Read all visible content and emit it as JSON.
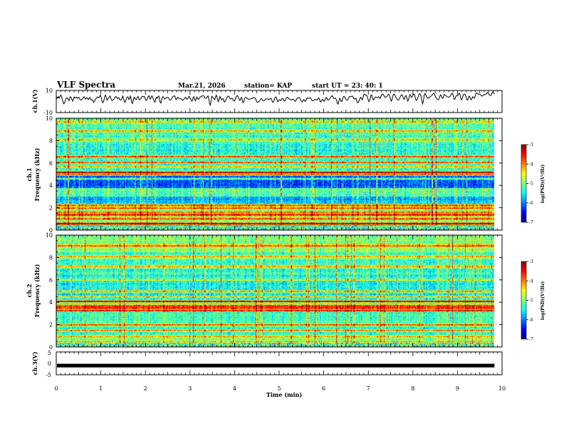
{
  "header": {
    "title": "VLF Spectra",
    "date": "Mar.21, 2026",
    "station": "station= KAP",
    "start_ut": "start  UT =   23: 40: 1"
  },
  "chart_data": [
    {
      "type": "line",
      "name": "ch1-waveform",
      "ylabel": "ch.1(V)",
      "ylim": [
        -10,
        10
      ],
      "yticks": [
        "10",
        "-10"
      ],
      "xlim": [
        0,
        10
      ],
      "values": [
        2.1,
        4.0,
        3.2,
        4.5,
        3.0,
        4.7,
        5.9,
        5.0,
        2.3,
        -0.4,
        -2.1,
        -1.3,
        1.1,
        2.6,
        3.3,
        2.9,
        2.2,
        0.8,
        2.9,
        4.3,
        3.6,
        1.4,
        0.4,
        2.6,
        4.1,
        3.0,
        3.6,
        3.9,
        3.1,
        3.4,
        3.9,
        2.8,
        1.6,
        1.3,
        2.1,
        2.3,
        3.4,
        4.4,
        3.6,
        2.2,
        2.9,
        3.5,
        2.4,
        1.9,
        3.1,
        3.7,
        2.3,
        1.3,
        1.7,
        0.9,
        -0.8,
        0.2,
        1.7,
        2.5,
        3.2,
        4.1,
        4.0,
        3.4,
        4.5,
        5.6,
        4.1,
        0.6,
        -1.1,
        -0.4,
        1.8,
        4.9,
        5.9,
        3.1,
        1.2,
        2.5,
        3.1,
        4.4,
        5.0,
        3.2,
        1.1,
        0.8,
        1.5,
        2.0,
        3.0,
        4.3,
        4.5,
        3.5,
        2.8,
        3.6,
        3.1,
        1.5,
        1.3,
        1.7,
        3.3,
        5.0,
        2.5,
        0.2,
        -0.8,
        1.1,
        3.1,
        4.2,
        4.1,
        1.8,
        2.3,
        4.9,
        2.9,
        -1.0,
        -1.8,
        1.3,
        3.9,
        3.6,
        2.1,
        1.7,
        3.1,
        4.6,
        3.6,
        1.5,
        2.0,
        2.7,
        3.6,
        4.9,
        4.5,
        4.1,
        4.6,
        2.5,
        0.9,
        1.5,
        2.8,
        4.7,
        5.2,
        2.8,
        2.2,
        4.1,
        5.2,
        3.7,
        2.0,
        0.0,
        -0.6,
        2.3,
        3.8,
        2.9,
        4.4,
        5.0,
        2.7,
        -0.8,
        -1.4,
        1.8,
        4.3,
        4.2,
        3.1,
        2.1,
        2.7,
        3.5,
        3.4,
        3.8,
        3.5,
        2.0,
        1.2,
        1.5,
        2.2,
        3.6,
        4.4,
        4.8,
        5.2,
        3.9,
        1.8,
        2.2,
        3.6,
        3.6,
        3.0,
        2.6,
        2.4,
        2.4,
        1.9,
        1.1,
        1.6,
        2.3,
        3.3,
        3.8,
        2.6,
        2.1,
        2.7,
        4.4,
        4.6,
        2.8,
        1.8,
        0.3,
        0.6,
        3.5,
        4.3,
        2.1,
        0.7,
        2.3,
        4.2,
        2.8,
        1.9,
        2.5,
        3.8,
        4.2,
        4.3,
        4.8,
        5.4,
        5.3,
        4.4,
        2.9,
        2.9,
        3.3,
        4.3,
        5.1,
        2.3,
        -1.9,
        -3.2,
        0.5,
        4.8,
        4.0,
        3.1,
        2.4,
        1.7,
        4.2,
        5.8,
        4.0,
        0.9,
        0.0,
        2.8,
        4.6,
        3.0,
        1.6,
        2.3,
        2.7,
        0.7,
        -0.5,
        0.6,
        1.8,
        3.0,
        4.5,
        4.9,
        4.3,
        2.9,
        2.2,
        2.6,
        3.1,
        2.0,
        1.0,
        0.4,
        1.3,
        3.1,
        4.7,
        5.5,
        4.6,
        3.2,
        1.0,
        1.0,
        3.2,
        3.7,
        0.4,
        -1.1,
        0.8,
        2.9,
        3.8,
        3.4,
        3.1,
        2.4,
        2.2,
        2.0,
        2.3,
        2.3,
        2.5,
        2.9,
        3.3,
        3.5,
        3.6,
        3.1,
        1.7,
        -0.1,
        -0.8,
        -0.5,
        0.1,
        0.7,
        1.6,
        2.6,
        2.3,
        1.1,
        0.6,
        0.7,
        1.4,
        2.2,
        2.3,
        2.5,
        2.1,
        1.6,
        1.9,
        2.6,
        3.0,
        1.7,
        -0.2,
        -0.8,
        0.5,
        2.6,
        3.9,
        4.1,
        2.3,
        -0.1,
        0.4,
        1.5,
        1.6,
        0.9,
        1.3,
        2.8,
        2.8,
        1.4,
        0.4,
        0.6,
        2.1,
        3.7,
        3.9,
        3.3,
        2.5,
        2.1,
        1.8,
        1.5,
        1.6,
        2.0,
        2.1,
        1.4,
        0.3,
        0.2,
        1.6,
        2.9,
        3.2,
        3.5,
        3.6,
        2.5,
        1.1,
        -0.1,
        -0.3,
        0.9,
        1.8,
        0.8,
        0.0,
        1.2,
        2.9,
        3.3,
        2.8,
        2.9,
        3.5,
        3.3,
        2.2,
        1.0,
        0.6,
        0.9,
        1.4,
        1.8,
        1.8,
        1.5,
        1.4,
        2.5,
        3.3,
        2.1,
        -0.1,
        -0.4,
        1.3,
        2.1,
        1.1,
        0.1,
        0.9,
        2.8,
        3.7,
        2.9,
        1.6,
        1.3,
        1.9,
        2.9,
        3.8,
        4.7,
        5.2,
        4.3,
        2.7,
        2.7,
        3.2,
        2.6,
        0.8,
        -1.8,
        -2.3,
        0.4,
        3.0,
        2.2,
        0.1,
        0.0,
        2.3,
        4.5,
        4.7,
        3.6,
        2.3,
        1.4,
        1.2,
        1.8,
        3.2,
        4.4,
        4.5,
        4.3,
        4.8,
        5.0,
        3.9,
        2.5,
        2.2,
        2.9,
        2.7,
        0.4,
        -1.3,
        -0.8,
        0.7,
        2.6,
        3.9,
        3.0,
        1.6,
        2.9,
        5.9,
        6.8,
        6.0,
        5.6,
        5.6,
        4.3,
        1.8,
        0.0,
        0.6,
        3.1,
        6.0,
        5.9,
        3.1,
        1.5,
        2.1,
        3.4,
        4.1,
        3.7,
        3.4,
        3.8,
        4.4,
        3.5,
        2.8,
        4.2,
        6.1,
        6.8,
        6.6,
        5.6,
        4.3,
        3.7,
        4.1,
        4.6,
        5.5,
        6.4,
        6.4,
        4.9,
        2.1,
        0.4,
        1.6,
        4.7,
        6.6,
        6.6,
        5.5,
        4.1,
        2.9,
        1.9,
        1.3,
        1.5,
        2.5,
        4.1,
        5.5,
        6.2,
        5.5,
        3.4,
        1.9,
        2.8,
        5.1,
        5.4,
        2.8,
        0.4,
        1.3,
        4.2,
        6.2,
        5.4,
        3.9,
        4.2,
        5.6,
        6.8,
        6.5,
        3.7,
        1.3,
        1.0,
        2.2,
        4.2,
        6.4,
        7.1,
        6.5,
        4.1,
        0.3,
        -2.0,
        0.6,
        5.4,
        7.3,
        6.3,
        4.7,
        3.5,
        3.0,
        3.2,
        3.9,
        4.3,
        4.9,
        5.5,
        6.2,
        7.1,
        7.5,
        6.3,
        4.3,
        3.0,
        2.3,
        1.9,
        1.7,
        2.8,
        5.0,
        6.1,
        5.0,
        3.0,
        3.1,
        5.0,
        6.3,
        5.9,
        5.4,
        4.8,
        4.3,
        4.0,
        4.0,
        4.3,
        5.0,
        6.2,
        7.5,
        7.3,
        5.2,
        2.2,
        2.0,
        4.2,
        5.3,
        5.1,
        5.4,
        6.8,
        7.6,
        6.0,
        2.9,
        1.5,
        3.0,
        5.4,
        6.7,
        6.8,
        6.1,
        4.2,
        1.9,
        1.2,
        3.1,
        4.9,
        4.4,
        2.2,
        1.6,
        3.1,
        4.3,
        3.7,
        3.1,
        4.5,
        6.9,
        7.9,
        7.5,
        6.8,
        6.5,
        6.5,
        6.3,
        5.6,
        5.0,
        5.1,
        5.6,
        6.2,
        6.4,
        6.3,
        6.8,
        7.9,
        8.3,
        7.3,
        6.1,
        5.4,
        5.4,
        6.5,
        8.3,
        8.9,
        7.4,
        6.8
      ]
    },
    {
      "type": "heatmap",
      "name": "ch1-spectrogram",
      "ylabel": "ch.1\nFrequency (kHz)",
      "ylim": [
        0,
        10
      ],
      "yticks": [
        "0",
        "2",
        "4",
        "6",
        "8",
        "10"
      ],
      "xlim": [
        0,
        10
      ],
      "colorbar": {
        "label": "log(PSD)(V²/Hz)",
        "range": [
          -7,
          -3
        ],
        "ticks": [
          "-3",
          "-4",
          "-5",
          "-6",
          "-7"
        ]
      },
      "lines_khz": [
        0.6,
        1.05,
        1.4,
        1.6,
        2.0,
        2.25,
        4.6,
        5.0,
        5.2,
        5.7,
        6.1,
        6.6,
        8.1,
        8.9,
        9.7
      ],
      "lines_strength": [
        0.85,
        0.6,
        0.7,
        0.5,
        0.55,
        1.0,
        0.5,
        0.8,
        0.95,
        0.5,
        0.7,
        0.8,
        0.5,
        0.55,
        0.5
      ],
      "bands": [
        [
          0.0,
          0.5,
          -5.6
        ],
        [
          0.5,
          2.2,
          -5.0
        ],
        [
          2.2,
          3.0,
          -5.8
        ],
        [
          3.0,
          3.8,
          -5.2
        ],
        [
          3.8,
          5.0,
          -6.2
        ],
        [
          5.0,
          6.9,
          -5.3
        ],
        [
          6.9,
          8.5,
          -5.4
        ],
        [
          8.5,
          10.0,
          -5.2
        ]
      ]
    },
    {
      "type": "heatmap",
      "name": "ch2-spectrogram",
      "ylabel": "ch.2\nFrequency (kHz)",
      "ylim": [
        0,
        10
      ],
      "yticks": [
        "0",
        "2",
        "4",
        "6",
        "8",
        "10"
      ],
      "xlim": [
        0,
        10
      ],
      "colorbar": {
        "label": "log(PSD)(V²/Hz)",
        "range": [
          -7,
          -3
        ],
        "ticks": [
          "-3",
          "-4",
          "-5",
          "-6",
          "-7"
        ]
      },
      "lines_khz": [
        0.5,
        0.9,
        1.5,
        2.0,
        3.3,
        3.5,
        3.7,
        4.1,
        4.5,
        5.0,
        6.0,
        7.2,
        8.1,
        9.1
      ],
      "lines_strength": [
        0.6,
        0.5,
        0.6,
        0.75,
        0.9,
        0.7,
        0.6,
        0.8,
        0.5,
        0.6,
        0.5,
        0.5,
        0.5,
        0.55
      ],
      "bands": [
        [
          0.0,
          0.5,
          -5.8
        ],
        [
          0.5,
          2.2,
          -5.3
        ],
        [
          2.2,
          3.4,
          -5.3
        ],
        [
          3.4,
          4.2,
          -5.0
        ],
        [
          4.2,
          6.5,
          -5.5
        ],
        [
          6.5,
          8.5,
          -5.3
        ],
        [
          8.5,
          10.0,
          -5.0
        ]
      ]
    },
    {
      "type": "line",
      "name": "ch3-waveform",
      "ylabel": "ch.3(V)",
      "ylim": [
        -5,
        5
      ],
      "yticks": [
        "5",
        "0",
        "-5"
      ],
      "xlim": [
        0,
        10
      ],
      "values": [
        -1.0,
        -1.0
      ],
      "band_width_v": 1.0
    }
  ],
  "x_axis": {
    "xlabel": "Time (min)",
    "ticks": [
      "0",
      "1",
      "2",
      "3",
      "4",
      "5",
      "6",
      "7",
      "8",
      "9",
      "10"
    ],
    "data_end_min": 9.83
  }
}
